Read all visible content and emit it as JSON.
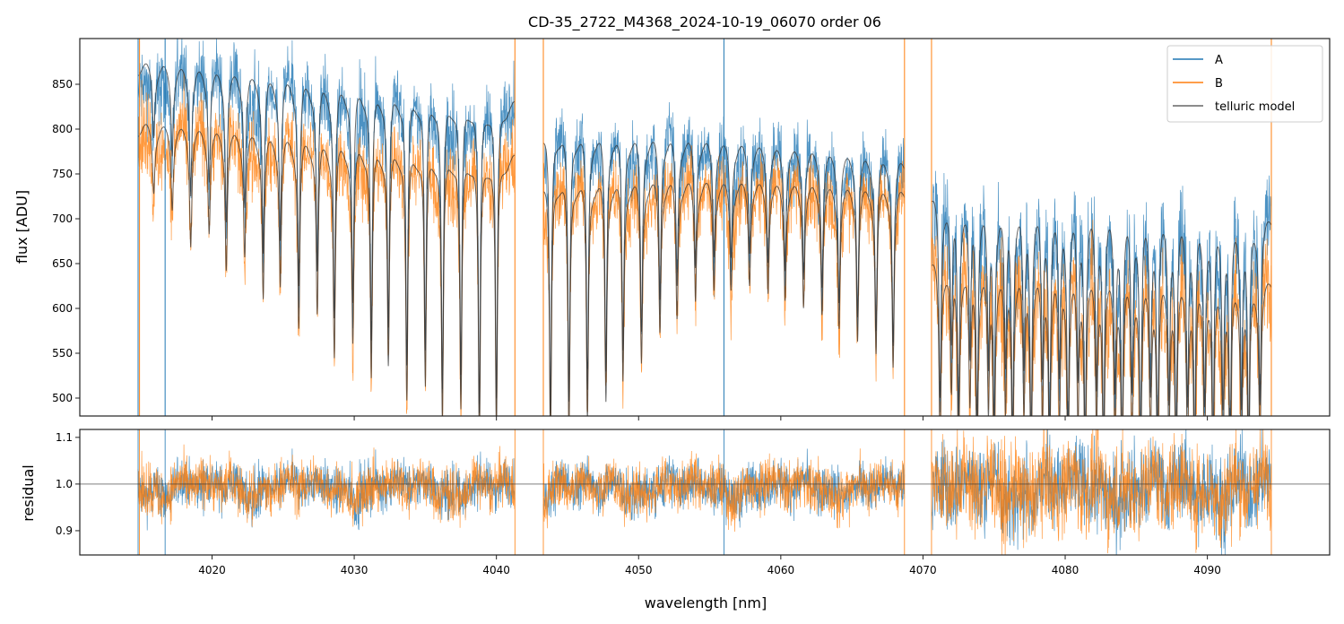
{
  "chart_data": {
    "type": "line",
    "title": "CD-35_2722_M4368_2024-10-19_06070  order 06",
    "panels": [
      {
        "name": "flux",
        "ylabel": "flux [ADU]",
        "ylim": [
          480,
          901
        ],
        "yticks": [
          500,
          550,
          600,
          650,
          700,
          750,
          800,
          850
        ],
        "ytick_labels": [
          "500",
          "550",
          "600",
          "650",
          "700",
          "750",
          "800",
          "850"
        ]
      },
      {
        "name": "residual",
        "ylabel": "residual",
        "ylim": [
          0.848,
          1.117
        ],
        "yticks": [
          0.9,
          1.0,
          1.1
        ],
        "ytick_labels": [
          "0.9",
          "1.0",
          "1.1"
        ],
        "reference_line": 1.0
      }
    ],
    "xlabel": "wavelength [nm]",
    "xlim": [
      4010.7,
      4098.6
    ],
    "xticks": [
      4020,
      4030,
      4040,
      4050,
      4060,
      4070,
      4080,
      4090
    ],
    "xtick_labels": [
      "4020",
      "4030",
      "4040",
      "4050",
      "4060",
      "4070",
      "4080",
      "4090"
    ],
    "legend": {
      "position": "top-right",
      "entries": [
        "A",
        "B",
        "telluric model"
      ]
    },
    "colors": {
      "A": "#1f77b4",
      "B": "#ff7f0e",
      "model": "#333333"
    },
    "segments": [
      {
        "range_nm": [
          4014.8,
          4041.3
        ],
        "continuum_A": [
          868,
          825
        ],
        "continuum_B": [
          800,
          765
        ],
        "noise": 0.025
      },
      {
        "range_nm": [
          4043.3,
          4068.7
        ],
        "continuum_A": [
          800,
          760
        ],
        "continuum_B": [
          745,
          728
        ],
        "noise": 0.025
      },
      {
        "range_nm": [
          4070.6,
          4094.5
        ],
        "continuum_A": [
          722,
          695
        ],
        "continuum_B": [
          650,
          625
        ],
        "noise": 0.045
      }
    ],
    "telluric_lines_nm": [
      4015.9,
      4017.2,
      4018.5,
      4019.8,
      4021.0,
      4022.3,
      4023.6,
      4024.8,
      4026.1,
      4027.4,
      4028.6,
      4029.9,
      4031.2,
      4032.4,
      4033.7,
      4035.0,
      4036.2,
      4037.5,
      4038.8,
      4040.0,
      4043.8,
      4045.1,
      4046.4,
      4047.7,
      4048.9,
      4050.2,
      4051.5,
      4052.7,
      4054.0,
      4055.3,
      4056.5,
      4057.8,
      4059.1,
      4060.3,
      4061.6,
      4062.9,
      4064.1,
      4065.4,
      4066.7,
      4067.9,
      4071.2,
      4072.0,
      4072.5,
      4073.3,
      4073.8,
      4074.6,
      4075.0,
      4075.8,
      4076.3,
      4077.1,
      4077.6,
      4078.4,
      4078.9,
      4079.6,
      4080.2,
      4080.9,
      4081.4,
      4082.2,
      4082.7,
      4083.5,
      4084.0,
      4084.7,
      4085.3,
      4086.0,
      4086.5,
      4087.3,
      4087.8,
      4088.6,
      4089.1,
      4089.8,
      4090.4,
      4091.1,
      4091.6,
      4092.4,
      4092.9,
      4093.7
    ],
    "telluric_depths": [
      0.08,
      0.1,
      0.15,
      0.13,
      0.18,
      0.16,
      0.22,
      0.2,
      0.26,
      0.24,
      0.3,
      0.28,
      0.33,
      0.31,
      0.36,
      0.34,
      0.39,
      0.37,
      0.42,
      0.4,
      0.4,
      0.38,
      0.36,
      0.33,
      0.3,
      0.27,
      0.22,
      0.2,
      0.17,
      0.15,
      0.15,
      0.14,
      0.15,
      0.16,
      0.17,
      0.18,
      0.2,
      0.22,
      0.24,
      0.26,
      0.3,
      0.22,
      0.32,
      0.24,
      0.33,
      0.25,
      0.33,
      0.25,
      0.34,
      0.25,
      0.34,
      0.26,
      0.34,
      0.26,
      0.35,
      0.26,
      0.35,
      0.27,
      0.35,
      0.27,
      0.36,
      0.27,
      0.36,
      0.27,
      0.36,
      0.28,
      0.36,
      0.28,
      0.36,
      0.28,
      0.36,
      0.28,
      0.36,
      0.28,
      0.36,
      0.28
    ],
    "spikes": [
      {
        "series": "A",
        "x": 4014.8
      },
      {
        "series": "B",
        "x": 4014.9
      },
      {
        "series": "A",
        "x": 4016.7
      },
      {
        "series": "B",
        "x": 4041.3
      },
      {
        "series": "B",
        "x": 4043.3
      },
      {
        "series": "A",
        "x": 4056.0
      },
      {
        "series": "B",
        "x": 4068.7
      },
      {
        "series": "B",
        "x": 4070.6
      },
      {
        "series": "B",
        "x": 4094.5
      }
    ]
  }
}
